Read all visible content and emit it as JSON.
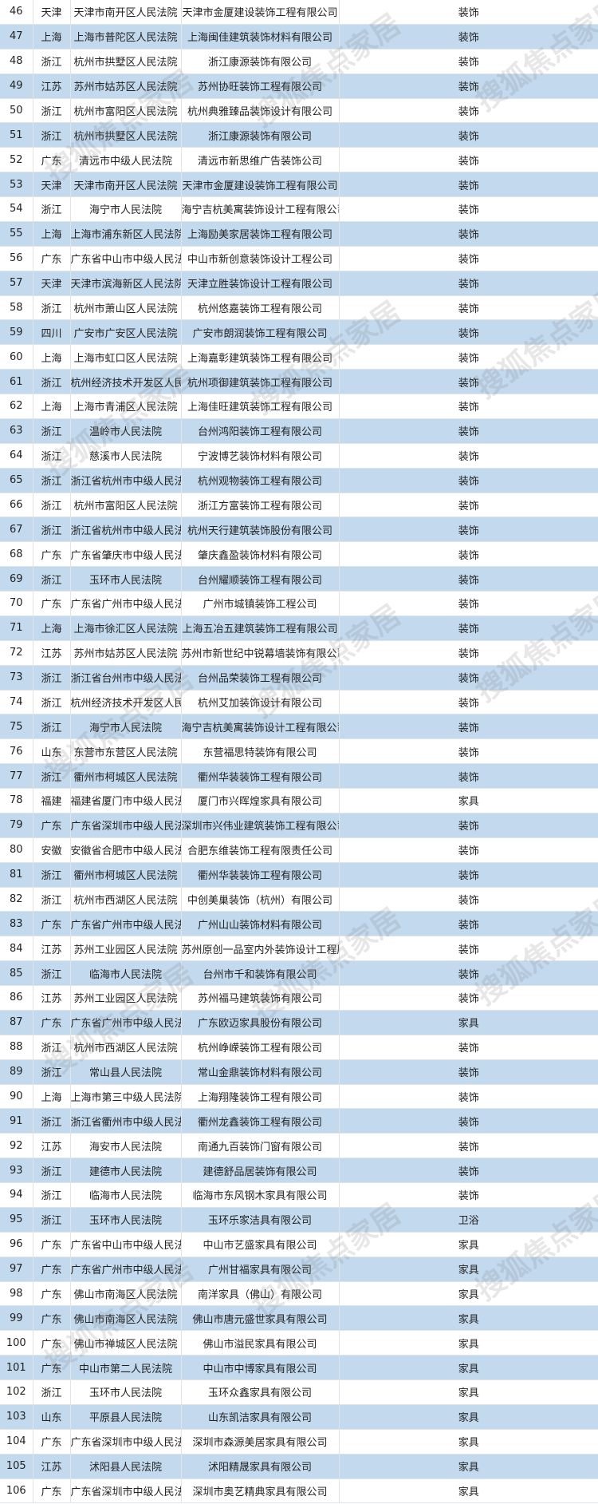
{
  "watermark": "搜狐焦点家居",
  "colors": {
    "alt_row": "#c3d9ee",
    "row": "#ffffff"
  },
  "rows": [
    [
      "46",
      "天津",
      "天津市南开区人民法院",
      "天津市金厦建设装饰工程有限公司",
      "装饰"
    ],
    [
      "47",
      "上海",
      "上海市普陀区人民法院",
      "上海闽佳建筑装饰材料有限公司",
      "装饰"
    ],
    [
      "48",
      "浙江",
      "杭州市拱墅区人民法院",
      "浙江康源装饰有限公司",
      "装饰"
    ],
    [
      "49",
      "江苏",
      "苏州市姑苏区人民法院",
      "苏州协旺装饰工程有限公司",
      "装饰"
    ],
    [
      "50",
      "浙江",
      "杭州市富阳区人民法院",
      "杭州典雅臻品装饰设计有限公司",
      "装饰"
    ],
    [
      "51",
      "浙江",
      "杭州市拱墅区人民法院",
      "浙江康源装饰有限公司",
      "装饰"
    ],
    [
      "52",
      "广东",
      "清远市中级人民法院",
      "清远市新思维广告装饰公司",
      "装饰"
    ],
    [
      "53",
      "天津",
      "天津市南开区人民法院",
      "天津市金厦建设装饰工程有限公司",
      "装饰"
    ],
    [
      "54",
      "浙江",
      "海宁市人民法院",
      "海宁吉杭美寓装饰设计工程有限公司",
      "装饰"
    ],
    [
      "55",
      "上海",
      "上海市浦东新区人民法院",
      "上海励美家居装饰工程有限公司",
      "装饰"
    ],
    [
      "56",
      "广东",
      "广东省中山市中级人民法院",
      "中山市新创意装饰设计工程公司",
      "装饰"
    ],
    [
      "57",
      "天津",
      "天津市滨海新区人民法院",
      "天津立胜装饰设计工程有限公司",
      "装饰"
    ],
    [
      "58",
      "浙江",
      "杭州市萧山区人民法院",
      "杭州悠嘉装饰工程有限公司",
      "装饰"
    ],
    [
      "59",
      "四川",
      "广安市广安区人民法院",
      "广安市朗润装饰工程有限公司",
      "装饰"
    ],
    [
      "60",
      "上海",
      "上海市虹口区人民法院",
      "上海嘉彰建筑装饰工程有限公司",
      "装饰"
    ],
    [
      "61",
      "浙江",
      "杭州经济技术开发区人民法院",
      "杭州项御建筑装饰工程有限公司",
      "装饰"
    ],
    [
      "62",
      "上海",
      "上海市青浦区人民法院",
      "上海佳旺建筑装饰工程有限公司",
      "装饰"
    ],
    [
      "63",
      "浙江",
      "温岭市人民法院",
      "台州鸿阳装饰工程有限公司",
      "装饰"
    ],
    [
      "64",
      "浙江",
      "慈溪市人民法院",
      "宁波博艺装饰材料有限公司",
      "装饰"
    ],
    [
      "65",
      "浙江",
      "浙江省杭州市中级人民法院",
      "杭州观物装饰工程有限公司",
      "装饰"
    ],
    [
      "66",
      "浙江",
      "杭州市富阳区人民法院",
      "浙江方富装饰工程有限公司",
      "装饰"
    ],
    [
      "67",
      "浙江",
      "浙江省杭州市中级人民法院",
      "杭州天行建筑装饰股份有限公司",
      "装饰"
    ],
    [
      "68",
      "广东",
      "广东省肇庆市中级人民法院",
      "肇庆鑫盈装饰材料有限公司",
      "装饰"
    ],
    [
      "69",
      "浙江",
      "玉环市人民法院",
      "台州耀顺装饰工程有限公司",
      "装饰"
    ],
    [
      "70",
      "广东",
      "广东省广州市中级人民法院",
      "广州市城镇装饰工程公司",
      "装饰"
    ],
    [
      "71",
      "上海",
      "上海市徐汇区人民法院",
      "上海五冶五建筑装饰工程有限公司",
      "装饰"
    ],
    [
      "72",
      "江苏",
      "苏州市姑苏区人民法院",
      "苏州市新世纪中锐幕墙装饰有限公司",
      "装饰"
    ],
    [
      "73",
      "浙江",
      "浙江省台州市中级人民法院",
      "台州品荣装饰工程有限公司",
      "装饰"
    ],
    [
      "74",
      "浙江",
      "杭州经济技术开发区人民法院",
      "杭州艾加装饰设计有限公司",
      "装饰"
    ],
    [
      "75",
      "浙江",
      "海宁市人民法院",
      "海宁吉杭美寓装饰设计工程有限公司",
      "装饰"
    ],
    [
      "76",
      "山东",
      "东营市东营区人民法院",
      "东营福思特装饰有限公司",
      "装饰"
    ],
    [
      "77",
      "浙江",
      "衢州市柯城区人民法院",
      "衢州华装装饰工程有限公司",
      "装饰"
    ],
    [
      "78",
      "福建",
      "福建省厦门市中级人民法院",
      "厦门市兴晖煌家具有限公司",
      "家具"
    ],
    [
      "79",
      "广东",
      "广东省深圳市中级人民法院",
      "深圳市兴伟业建筑装饰工程有限公司",
      "装饰"
    ],
    [
      "80",
      "安徽",
      "安徽省合肥市中级人民法院",
      "合肥东维装饰工程有限责任公司",
      "装饰"
    ],
    [
      "81",
      "浙江",
      "衢州市柯城区人民法院",
      "衢州华装装饰工程有限公司",
      "装饰"
    ],
    [
      "82",
      "浙江",
      "杭州市西湖区人民法院",
      "中创美巢装饰（杭州）有限公司",
      "装饰"
    ],
    [
      "83",
      "广东",
      "广东省广州市中级人民法院",
      "广州山山装饰材料有限公司",
      "装饰"
    ],
    [
      "84",
      "江苏",
      "苏州工业园区人民法院",
      "苏州原创一品室内外装饰设计工程股份有限公司",
      "装饰"
    ],
    [
      "85",
      "浙江",
      "临海市人民法院",
      "台州市千和装饰有限公司",
      "装饰"
    ],
    [
      "86",
      "江苏",
      "苏州工业园区人民法院",
      "苏州福马建筑装饰有限公司",
      "装饰"
    ],
    [
      "87",
      "广东",
      "广东省广州市中级人民法院",
      "广东欧迈家具股份有限公司",
      "家具"
    ],
    [
      "88",
      "浙江",
      "杭州市西湖区人民法院",
      "杭州峥嵘装饰工程有限公司",
      "装饰"
    ],
    [
      "89",
      "浙江",
      "常山县人民法院",
      "常山金鼎装饰材料有限公司",
      "装饰"
    ],
    [
      "90",
      "上海",
      "上海市第三中级人民法院",
      "上海翔隆装饰工程有限公司",
      "装饰"
    ],
    [
      "91",
      "浙江",
      "浙江省衢州市中级人民法院",
      "衢州龙鑫装饰工程有限公司",
      "装饰"
    ],
    [
      "92",
      "江苏",
      "海安市人民法院",
      "南通九百装饰门窗有限公司",
      "装饰"
    ],
    [
      "93",
      "浙江",
      "建德市人民法院",
      "建德舒品居装饰有限公司",
      "装饰"
    ],
    [
      "94",
      "浙江",
      "临海市人民法院",
      "临海市东风钢木家具有限公司",
      "装饰"
    ],
    [
      "95",
      "浙江",
      "玉环市人民法院",
      "玉环乐家洁具有限公司",
      "卫浴"
    ],
    [
      "96",
      "广东",
      "广东省中山市中级人民法院",
      "中山市艺盛家具有限公司",
      "家具"
    ],
    [
      "97",
      "广东",
      "广东省广州市中级人民法院",
      "广州甘福家具有限公司",
      "家具"
    ],
    [
      "98",
      "广东",
      "佛山市南海区人民法院",
      "南洋家具（佛山）有限公司",
      "家具"
    ],
    [
      "99",
      "广东",
      "佛山市南海区人民法院",
      "佛山市唐元盛世家具有限公司",
      "家具"
    ],
    [
      "100",
      "广东",
      "佛山市禅城区人民法院",
      "佛山市溢民家具有限公司",
      "家具"
    ],
    [
      "101",
      "广东",
      "中山市第二人民法院",
      "中山市中博家具有限公司",
      "家具"
    ],
    [
      "102",
      "浙江",
      "玉环市人民法院",
      "玉环众鑫家具有限公司",
      "家具"
    ],
    [
      "103",
      "山东",
      "平原县人民法院",
      "山东凯洁家具有限公司",
      "家具"
    ],
    [
      "104",
      "广东",
      "广东省深圳市中级人民法院",
      "深圳市森源美居家具有限公司",
      "家具"
    ],
    [
      "105",
      "江苏",
      "沭阳县人民法院",
      "沭阳精晟家具有限公司",
      "家具"
    ],
    [
      "106",
      "广东",
      "广东省深圳市中级人民法院",
      "深圳市奥艺精典家具有限公司",
      "家具"
    ]
  ]
}
